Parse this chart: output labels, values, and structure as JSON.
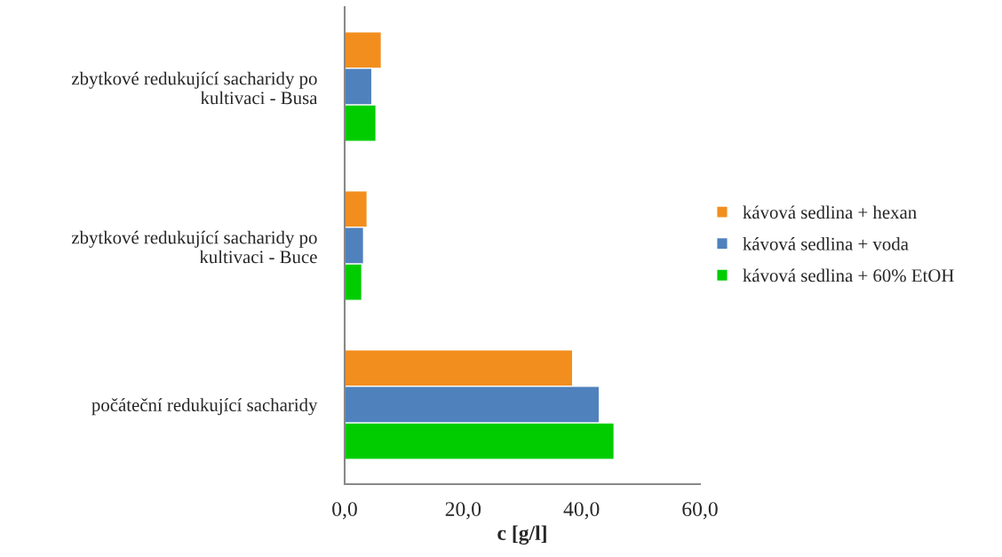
{
  "chart_data": {
    "type": "bar",
    "orientation": "horizontal",
    "categories": [
      "zbytkové redukující sacharidy po\nkultivaci - Busa",
      "zbytkové redukující sacharidy po\nkultivaci - Buce",
      "počáteční redukující sacharidy"
    ],
    "series": [
      {
        "name": "kávová sedlina + hexan",
        "color": "#f28e1e",
        "values": [
          6.2,
          3.8,
          38.5
        ]
      },
      {
        "name": "kávová sedlina + voda",
        "color": "#4f81bd",
        "values": [
          4.6,
          3.2,
          43.0
        ]
      },
      {
        "name": "kávová sedlina + 60% EtOH",
        "color": "#00cc00",
        "values": [
          5.3,
          2.9,
          45.5
        ]
      }
    ],
    "xlabel": "c [g/l]",
    "xlim": [
      0,
      60
    ],
    "xticks": [
      {
        "value": 0,
        "label": "0,0"
      },
      {
        "value": 20,
        "label": "20,0"
      },
      {
        "value": 40,
        "label": "40,0"
      },
      {
        "value": 60,
        "label": "60,0"
      }
    ],
    "legend": "right",
    "grid": false
  }
}
